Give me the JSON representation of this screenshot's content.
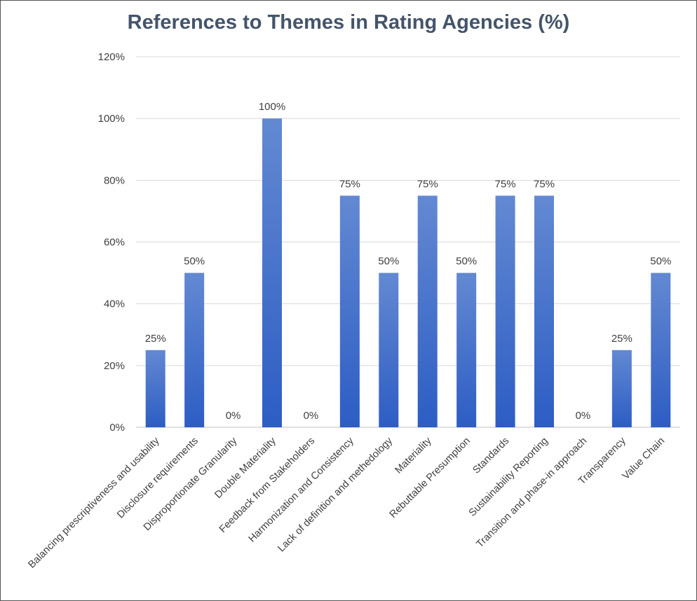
{
  "chart_data": {
    "type": "bar",
    "title": "References to Themes in Rating Agencies (%)",
    "xlabel": "",
    "ylabel": "",
    "ylim": [
      0,
      120
    ],
    "yticks": [
      "0%",
      "20%",
      "40%",
      "60%",
      "80%",
      "100%",
      "120%"
    ],
    "grid": true,
    "legend": "none",
    "bar_color": "#4472c4",
    "categories": [
      "Balancing prescriptiveness and usability",
      "Disclosure requirements",
      "Disproportionate Granularity",
      "Double Materiality",
      "Feedback from Stakeholders",
      "Harmonization and Consistency",
      "Lack of definition and methedology",
      "Materiality",
      "Rebuttable Presumption",
      "Standards",
      "Sustainability Reporting",
      "Transition and phase-in approach",
      "Transparency",
      "Value Chain"
    ],
    "values": [
      25,
      50,
      0,
      100,
      0,
      75,
      50,
      75,
      50,
      75,
      75,
      0,
      25,
      50
    ],
    "data_labels": [
      "25%",
      "50%",
      "0%",
      "100%",
      "0%",
      "75%",
      "50%",
      "75%",
      "50%",
      "75%",
      "75%",
      "0%",
      "25%",
      "50%"
    ]
  }
}
